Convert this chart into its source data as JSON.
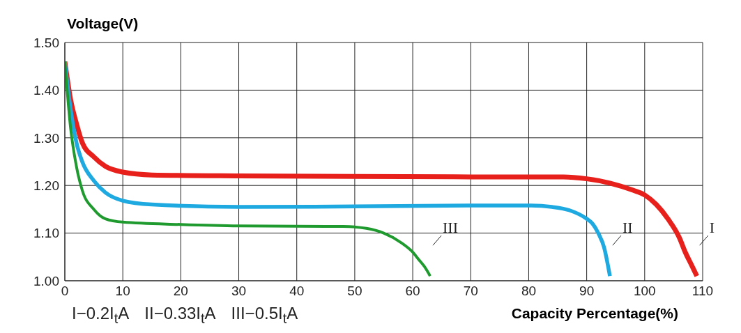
{
  "chart_data": {
    "type": "line",
    "ylabel": "Voltage(V)",
    "xlabel": "Capacity Percentage(%)",
    "annotations": [
      "I−0.2I$_{t}$A",
      "II−0.33I$_{t}$A",
      "III−0.5I$_{t}$A"
    ],
    "xlim": [
      0,
      110
    ],
    "xticks": [
      0,
      10,
      20,
      30,
      40,
      50,
      60,
      70,
      80,
      90,
      100,
      110
    ],
    "ylim": [
      1.0,
      1.5
    ],
    "yticks": [
      {
        "value": 1.0,
        "label": "1.00"
      },
      {
        "value": 1.1,
        "label": "1.10"
      },
      {
        "value": 1.2,
        "label": "1.20"
      },
      {
        "value": 1.3,
        "label": "1.30"
      },
      {
        "value": 1.4,
        "label": "1.40"
      },
      {
        "value": 1.5,
        "label": "1.50"
      }
    ],
    "grid": true,
    "legend": false,
    "marker": "none",
    "line_style": "solid",
    "series": [
      {
        "name": "I",
        "color": "#e8201c",
        "x": [
          0,
          1,
          2,
          3,
          5,
          7,
          10,
          15,
          30,
          50,
          70,
          86,
          90,
          94,
          98,
          100,
          102,
          104,
          106,
          107,
          108,
          109
        ],
        "values": [
          1.46,
          1.38,
          1.33,
          1.29,
          1.26,
          1.24,
          1.228,
          1.222,
          1.22,
          1.219,
          1.218,
          1.218,
          1.214,
          1.205,
          1.19,
          1.18,
          1.16,
          1.13,
          1.09,
          1.06,
          1.035,
          1.01
        ]
      },
      {
        "name": "II",
        "color": "#1ea9e1",
        "x": [
          0,
          1,
          2,
          3,
          5,
          7,
          10,
          15,
          30,
          50,
          70,
          80,
          84,
          87,
          90,
          91,
          92,
          93,
          94
        ],
        "values": [
          1.46,
          1.36,
          1.29,
          1.25,
          1.21,
          1.185,
          1.168,
          1.16,
          1.155,
          1.156,
          1.158,
          1.158,
          1.155,
          1.148,
          1.13,
          1.12,
          1.1,
          1.07,
          1.01
        ]
      },
      {
        "name": "III",
        "color": "#1f9a2e",
        "x": [
          0,
          1,
          2,
          3,
          5,
          7,
          10,
          20,
          30,
          45,
          48,
          52,
          55,
          58,
          60,
          61,
          62,
          63
        ],
        "values": [
          1.46,
          1.32,
          1.24,
          1.19,
          1.15,
          1.13,
          1.123,
          1.118,
          1.115,
          1.114,
          1.114,
          1.11,
          1.1,
          1.08,
          1.06,
          1.045,
          1.03,
          1.01
        ]
      }
    ]
  }
}
